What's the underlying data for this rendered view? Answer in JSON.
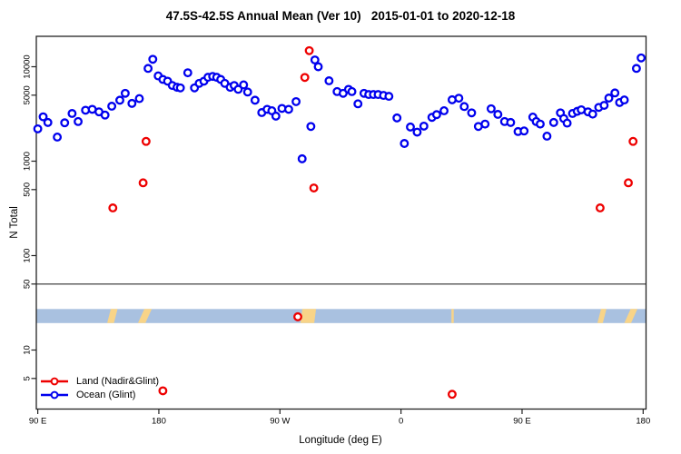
{
  "title": "47.5S-42.5S Annual Mean (Ver 10)   2015-01-01 to 2020-12-18",
  "axes": {
    "x": {
      "label": "Longitude (deg E)",
      "tick_values": [
        90,
        180,
        270,
        360,
        450,
        540
      ],
      "tick_labels": [
        "90 E",
        "180",
        "90 W",
        "0",
        "90 E",
        "180"
      ],
      "range": [
        90,
        540
      ]
    },
    "y": {
      "label": "N Total",
      "scale": "log",
      "tick_values": [
        10000,
        5000,
        1000,
        500,
        100,
        50,
        10,
        5
      ],
      "tick_labels": [
        "10000",
        "5000",
        "1000",
        "500",
        "100",
        "50",
        "10",
        "5"
      ]
    }
  },
  "legend": {
    "items": [
      {
        "label": "Land (Nadir&Glint)",
        "color": "#ee0000"
      },
      {
        "label": "Ocean (Glint)",
        "color": "#0000ee"
      }
    ]
  },
  "panel_divider_value": 50,
  "map_strip": {
    "ocean_color": "#a9c1e0",
    "land_color": "#f8d488",
    "top_value": 27.2,
    "bottom_value": 19.3,
    "land_patches": [
      {
        "start": 141.6,
        "end": 146.6,
        "slant": 4
      },
      {
        "start": 164.5,
        "end": 170.0,
        "slant": 7
      },
      {
        "start": 285.3,
        "end": 295.5,
        "slant": 2
      },
      {
        "start": 397.5,
        "end": 399.2,
        "slant": 0
      },
      {
        "start": 506.0,
        "end": 510.0,
        "slant": 4
      },
      {
        "start": 526.0,
        "end": 531.0,
        "slant": 7
      }
    ]
  },
  "chart_data": {
    "type": "scatter",
    "title": "47.5S-42.5S Annual Mean (Ver 10) 2015-01-01 to 2020-12-18",
    "xlabel": "Longitude (deg E)",
    "ylabel": "N Total",
    "x_range": [
      90,
      540
    ],
    "y_scale": "log",
    "y_ticks": [
      10000,
      5000,
      1000,
      500,
      100,
      50,
      10,
      5
    ],
    "series": [
      {
        "name": "Ocean (Glint)",
        "color": "#0000ee",
        "points": [
          [
            90,
            2200
          ],
          [
            94,
            2950
          ],
          [
            97.5,
            2570
          ],
          [
            104.5,
            1800
          ],
          [
            110,
            2550
          ],
          [
            115.5,
            3200
          ],
          [
            120,
            2630
          ],
          [
            125.5,
            3460
          ],
          [
            130.5,
            3540
          ],
          [
            135.5,
            3330
          ],
          [
            140,
            3080
          ],
          [
            145,
            3820
          ],
          [
            151,
            4420
          ],
          [
            155,
            5230
          ],
          [
            160,
            4090
          ],
          [
            165.5,
            4600
          ],
          [
            172,
            9600
          ],
          [
            175.5,
            12000
          ],
          [
            179.5,
            8000
          ],
          [
            183,
            7340
          ],
          [
            186.5,
            7030
          ],
          [
            190,
            6330
          ],
          [
            193.5,
            6060
          ],
          [
            196,
            5970
          ],
          [
            201.5,
            8630
          ],
          [
            206.5,
            5970
          ],
          [
            210,
            6670
          ],
          [
            213.5,
            7030
          ],
          [
            216.5,
            7730
          ],
          [
            220,
            7900
          ],
          [
            223,
            7730
          ],
          [
            226,
            7340
          ],
          [
            229,
            6670
          ],
          [
            233,
            6060
          ],
          [
            236,
            6330
          ],
          [
            239,
            5770
          ],
          [
            243,
            6430
          ],
          [
            246,
            5400
          ],
          [
            251.5,
            4420
          ],
          [
            256.5,
            3270
          ],
          [
            260.5,
            3540
          ],
          [
            264,
            3420
          ],
          [
            267,
            3000
          ],
          [
            271.5,
            3620
          ],
          [
            276.5,
            3540
          ],
          [
            282,
            4270
          ],
          [
            286.5,
            1060
          ],
          [
            293,
            2330
          ],
          [
            296,
            11800
          ],
          [
            298.5,
            10000
          ],
          [
            306.5,
            7100
          ],
          [
            312.5,
            5460
          ],
          [
            317,
            5230
          ],
          [
            321,
            5760
          ],
          [
            323.5,
            5460
          ],
          [
            328,
            4050
          ],
          [
            332.5,
            5230
          ],
          [
            336,
            5080
          ],
          [
            339.5,
            5080
          ],
          [
            343,
            5080
          ],
          [
            347,
            4970
          ],
          [
            351,
            4860
          ],
          [
            357,
            2870
          ],
          [
            362.5,
            1540
          ],
          [
            367,
            2300
          ],
          [
            372,
            2030
          ],
          [
            377,
            2350
          ],
          [
            383,
            2910
          ],
          [
            386.5,
            3110
          ],
          [
            392,
            3420
          ],
          [
            398,
            4470
          ],
          [
            403,
            4640
          ],
          [
            407,
            3790
          ],
          [
            412.5,
            3250
          ],
          [
            417.5,
            2330
          ],
          [
            422.5,
            2470
          ],
          [
            427,
            3590
          ],
          [
            432,
            3130
          ],
          [
            437,
            2630
          ],
          [
            441.5,
            2570
          ],
          [
            447,
            2060
          ],
          [
            451.5,
            2090
          ],
          [
            458,
            2930
          ],
          [
            460.5,
            2630
          ],
          [
            463.5,
            2470
          ],
          [
            468.5,
            1840
          ],
          [
            473.5,
            2570
          ],
          [
            478.5,
            3250
          ],
          [
            481,
            2830
          ],
          [
            483.5,
            2530
          ],
          [
            487.5,
            3200
          ],
          [
            491,
            3370
          ],
          [
            494,
            3500
          ],
          [
            499,
            3330
          ],
          [
            502.5,
            3150
          ],
          [
            507,
            3710
          ],
          [
            511,
            3900
          ],
          [
            514.5,
            4660
          ],
          [
            519,
            5280
          ],
          [
            522.5,
            4180
          ],
          [
            526,
            4450
          ],
          [
            535,
            9600
          ],
          [
            538.5,
            12400
          ]
        ]
      },
      {
        "name": "Land (Nadir&Glint)",
        "color": "#ee0000",
        "points": [
          [
            145.8,
            320
          ],
          [
            168.3,
            590
          ],
          [
            170.5,
            1620
          ],
          [
            183,
            3.7
          ],
          [
            283.3,
            22.5
          ],
          [
            288.5,
            7700
          ],
          [
            291.8,
            14800
          ],
          [
            295.2,
            520
          ],
          [
            398,
            3.4
          ],
          [
            508,
            320
          ],
          [
            529,
            590
          ],
          [
            532.5,
            1620
          ]
        ]
      }
    ]
  }
}
